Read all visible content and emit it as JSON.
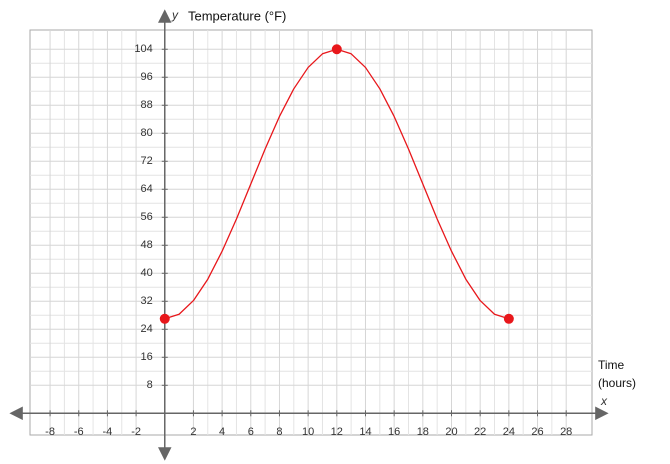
{
  "chart_data": {
    "type": "line",
    "y_variable": "y",
    "y_label": "Temperature (°F)",
    "x_variable": "x",
    "x_label_lines": [
      "Time",
      "(hours)"
    ],
    "xlim": [
      -9.4,
      29.8
    ],
    "ylim": [
      -6.2,
      109.5
    ],
    "xticks": [
      -8,
      -6,
      -4,
      -2,
      2,
      4,
      6,
      8,
      10,
      12,
      14,
      16,
      18,
      20,
      22,
      24,
      26,
      28
    ],
    "yticks": [
      8,
      16,
      24,
      32,
      40,
      48,
      56,
      64,
      72,
      80,
      88,
      96,
      104
    ],
    "grid": true,
    "series": [
      {
        "color": "#e8171b",
        "style": "line",
        "x": [
          0,
          1,
          2,
          3,
          4,
          5,
          6,
          7,
          8,
          9,
          10,
          11,
          12,
          13,
          14,
          15,
          16,
          17,
          18,
          19,
          20,
          21,
          22,
          23,
          24
        ],
        "values": [
          27,
          28.3,
          32.2,
          38.3,
          46.3,
          55.5,
          65.5,
          75.5,
          84.8,
          92.7,
          98.8,
          102.7,
          104,
          102.7,
          98.8,
          92.7,
          84.8,
          75.5,
          65.5,
          55.5,
          46.3,
          38.3,
          32.2,
          28.3,
          27
        ]
      },
      {
        "color": "#e8171b",
        "style": "points",
        "x": [
          0,
          12,
          24
        ],
        "values": [
          27,
          104,
          27
        ]
      }
    ]
  }
}
